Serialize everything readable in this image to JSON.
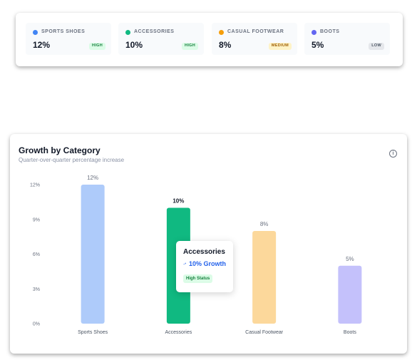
{
  "summary": {
    "items": [
      {
        "label": "SPORTS SHOES",
        "value": "12%",
        "badge": "HIGH",
        "dot_color": "#4285f4",
        "badge_bg": "#dcfce7",
        "badge_color": "#15803d"
      },
      {
        "label": "ACCESSORIES",
        "value": "10%",
        "badge": "HIGH",
        "dot_color": "#10b981",
        "badge_bg": "#dcfce7",
        "badge_color": "#15803d"
      },
      {
        "label": "CASUAL FOOTWEAR",
        "value": "8%",
        "badge": "MEDIUM",
        "dot_color": "#f59e0b",
        "badge_bg": "#fef3c7",
        "badge_color": "#a16207"
      },
      {
        "label": "BOOTS",
        "value": "5%",
        "badge": "LOW",
        "dot_color": "#6366f1",
        "badge_bg": "#e5e7eb",
        "badge_color": "#4b5563"
      }
    ]
  },
  "chart_card": {
    "title": "Growth by Category",
    "subtitle": "Quarter-over-quarter percentage increase",
    "info_icon": "info-icon"
  },
  "chart_data": {
    "type": "bar",
    "categories": [
      "Sports Shoes",
      "Accessories",
      "Casual Footwear",
      "Boots"
    ],
    "values": [
      12,
      10,
      8,
      5
    ],
    "data_labels": [
      "12%",
      "10%",
      "8%",
      "5%"
    ],
    "ylim": [
      0,
      12
    ],
    "yticks": [
      0,
      3,
      6,
      9,
      12
    ],
    "ytick_labels": [
      "0%",
      "3%",
      "6%",
      "9%",
      "12%"
    ],
    "colors": [
      "#aecbfa",
      "#10b981",
      "#fcd89b",
      "#c4c1fb"
    ],
    "active_index": 1,
    "grid": false
  },
  "tooltip": {
    "title": "Accessories",
    "growth": "10% Growth",
    "status": "High Status",
    "trend_icon": "trending-up-icon"
  }
}
